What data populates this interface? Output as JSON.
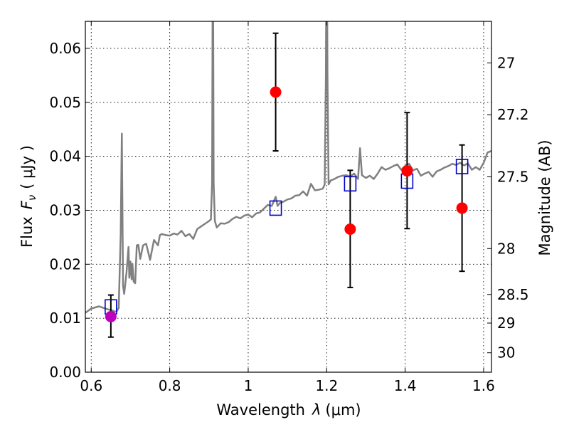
{
  "chart_data": {
    "type": "scatter",
    "title": "",
    "xlabel": "Wavelength",
    "xlabel_symbol": "λ",
    "xlabel_unit": "(μm)",
    "ylabel": "Flux",
    "ylabel_symbol": "F",
    "ylabel_symbol_sub": "ν",
    "ylabel_unit": "( μJy )",
    "ylabel_right": "Magnitude (AB)",
    "xlim": [
      0.585,
      1.62
    ],
    "ylim": [
      0.0,
      0.065
    ],
    "x_ticks": [
      0.6,
      0.8,
      1.0,
      1.2,
      1.4,
      1.6
    ],
    "x_tick_labels": [
      "0.6",
      "0.8",
      "1",
      "1.2",
      "1.4",
      "1.6"
    ],
    "y_ticks": [
      0.0,
      0.01,
      0.02,
      0.03,
      0.04,
      0.05,
      0.06
    ],
    "y_tick_labels": [
      "0.00",
      "0.01",
      "0.02",
      "0.03",
      "0.04",
      "0.05",
      "0.06"
    ],
    "right_ticks": [
      {
        "label": "27",
        "flux": 0.0573
      },
      {
        "label": "27.2",
        "flux": 0.0477
      },
      {
        "label": "27.5",
        "flux": 0.0362
      },
      {
        "label": "28",
        "flux": 0.0229
      },
      {
        "label": "28.5",
        "flux": 0.0144
      },
      {
        "label": "29",
        "flux": 0.0091
      },
      {
        "label": "30",
        "flux": 0.0036
      }
    ],
    "grid": true,
    "colors": {
      "model": "#808080",
      "observed": "#ff0000",
      "observed_first": "#bf00bf",
      "synthetic": "#0000cc",
      "errorbar": "#000000"
    },
    "series": [
      {
        "kind": "line",
        "x": [
          0.585,
          0.6,
          0.62,
          0.64,
          0.655,
          0.66,
          0.665,
          0.67,
          0.675,
          0.678,
          0.681,
          0.684,
          0.69,
          0.695,
          0.697,
          0.7,
          0.703,
          0.705,
          0.708,
          0.712,
          0.716,
          0.72,
          0.725,
          0.732,
          0.74,
          0.75,
          0.76,
          0.77,
          0.775,
          0.78,
          0.79,
          0.8,
          0.81,
          0.82,
          0.83,
          0.84,
          0.85,
          0.86,
          0.87,
          0.88,
          0.89,
          0.9,
          0.905,
          0.908,
          0.91,
          0.912,
          0.915,
          0.92,
          0.93,
          0.94,
          0.95,
          0.96,
          0.97,
          0.98,
          0.99,
          1.0,
          1.01,
          1.02,
          1.03,
          1.04,
          1.05,
          1.06,
          1.07,
          1.075,
          1.08,
          1.09,
          1.1,
          1.11,
          1.12,
          1.13,
          1.14,
          1.15,
          1.16,
          1.17,
          1.18,
          1.19,
          1.195,
          1.198,
          1.2,
          1.202,
          1.205,
          1.21,
          1.22,
          1.23,
          1.24,
          1.25,
          1.26,
          1.27,
          1.28,
          1.285,
          1.29,
          1.3,
          1.31,
          1.32,
          1.33,
          1.34,
          1.35,
          1.36,
          1.37,
          1.38,
          1.39,
          1.4,
          1.41,
          1.42,
          1.43,
          1.44,
          1.45,
          1.46,
          1.47,
          1.48,
          1.49,
          1.5,
          1.51,
          1.52,
          1.53,
          1.54,
          1.55,
          1.56,
          1.57,
          1.58,
          1.59,
          1.6,
          1.61,
          1.62
        ],
        "y": [
          0.011,
          0.0118,
          0.0122,
          0.0117,
          0.0114,
          0.0112,
          0.0113,
          0.0119,
          0.0255,
          0.0442,
          0.016,
          0.0145,
          0.0185,
          0.0232,
          0.0175,
          0.0205,
          0.0172,
          0.0201,
          0.0168,
          0.0165,
          0.0235,
          0.0236,
          0.021,
          0.0235,
          0.0238,
          0.0208,
          0.0245,
          0.0235,
          0.0254,
          0.0256,
          0.0254,
          0.0253,
          0.0257,
          0.0255,
          0.0262,
          0.0252,
          0.0256,
          0.0247,
          0.0265,
          0.027,
          0.0275,
          0.028,
          0.0283,
          0.035,
          0.085,
          0.035,
          0.028,
          0.0268,
          0.0276,
          0.0275,
          0.0278,
          0.0284,
          0.0288,
          0.0285,
          0.029,
          0.0292,
          0.0287,
          0.0294,
          0.0296,
          0.0303,
          0.031,
          0.0308,
          0.0325,
          0.0308,
          0.0313,
          0.0316,
          0.032,
          0.0322,
          0.0327,
          0.0328,
          0.0335,
          0.0327,
          0.0349,
          0.0337,
          0.0338,
          0.034,
          0.0348,
          0.055,
          0.09,
          0.055,
          0.0348,
          0.0355,
          0.0358,
          0.0362,
          0.0364,
          0.0365,
          0.0362,
          0.0368,
          0.0358,
          0.0415,
          0.0365,
          0.036,
          0.0364,
          0.0358,
          0.0368,
          0.038,
          0.0375,
          0.0378,
          0.0382,
          0.0385,
          0.0375,
          0.0382,
          0.0386,
          0.0374,
          0.0377,
          0.0364,
          0.0368,
          0.0371,
          0.0362,
          0.0372,
          0.0375,
          0.0379,
          0.0382,
          0.0386,
          0.0384,
          0.0388,
          0.0383,
          0.0387,
          0.0375,
          0.038,
          0.0375,
          0.0388,
          0.0407,
          0.041
        ]
      },
      {
        "kind": "points",
        "marker": "open-square",
        "x": [
          0.65,
          1.07,
          1.26,
          1.405,
          1.545
        ],
        "y": [
          0.0121,
          0.0304,
          0.0349,
          0.0354,
          0.0381
        ]
      },
      {
        "kind": "points",
        "marker": "filled-circle",
        "x": [
          0.65,
          1.07,
          1.26,
          1.405,
          1.545
        ],
        "y": [
          0.0103,
          0.0519,
          0.0265,
          0.0373,
          0.0304
        ],
        "yerr_low": [
          0.0065,
          0.041,
          0.0157,
          0.0266,
          0.0187
        ],
        "yerr_high": [
          0.0143,
          0.0628,
          0.0374,
          0.0481,
          0.0421
        ]
      }
    ]
  }
}
